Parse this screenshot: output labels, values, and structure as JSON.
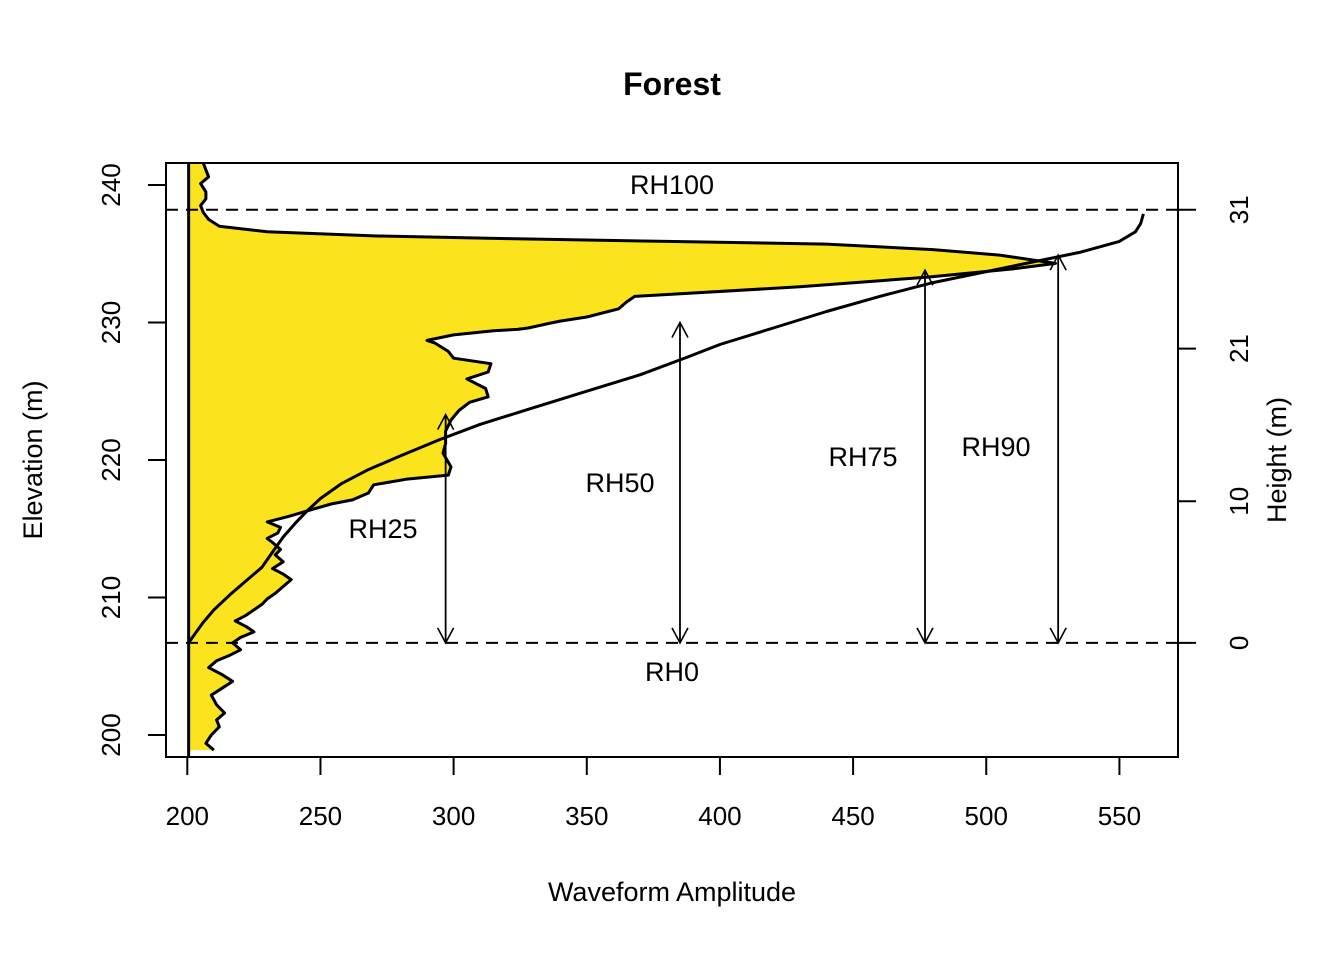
{
  "chart_data": {
    "type": "line",
    "title": "Forest",
    "xlabel": "Waveform Amplitude",
    "ylabel": "Elevation (m)",
    "y2label": "Height (m)",
    "xlim": [
      192,
      572
    ],
    "ylim": [
      198.4,
      241.6
    ],
    "x_ticks": [
      "200",
      "250",
      "300",
      "350",
      "400",
      "450",
      "500",
      "550"
    ],
    "y_ticks": [
      "200",
      "210",
      "220",
      "230",
      "240"
    ],
    "y2_ticks": [
      "0",
      "10",
      "21",
      "31"
    ],
    "y2_tick_elevations": [
      206.7,
      217.0,
      228.1,
      238.2
    ],
    "grid": false,
    "ground_elevation": 206.7,
    "top_elevation": 238.2,
    "baseline_amplitude": 200.5,
    "fill_color": "#FBE31D",
    "line_color": "#000000",
    "series": [
      {
        "kind": "waveform",
        "points": [
          [
            210,
            198.9
          ],
          [
            207,
            199.4
          ],
          [
            209,
            200
          ],
          [
            212,
            200.6
          ],
          [
            211,
            201.1
          ],
          [
            214,
            201.6
          ],
          [
            211,
            202.2
          ],
          [
            209,
            202.9
          ],
          [
            213,
            203.4
          ],
          [
            217,
            203.9
          ],
          [
            213,
            204.4
          ],
          [
            208,
            204.9
          ],
          [
            211,
            205.4
          ],
          [
            216,
            205.8
          ],
          [
            220,
            206.2
          ],
          [
            217,
            206.7
          ],
          [
            220,
            207.1
          ],
          [
            225,
            207.5
          ],
          [
            222,
            207.9
          ],
          [
            218,
            208.3
          ],
          [
            222,
            208.7
          ],
          [
            225,
            209.1
          ],
          [
            228,
            209.5
          ],
          [
            230,
            209.9
          ],
          [
            233,
            210.3
          ],
          [
            236,
            210.8
          ],
          [
            239,
            211.3
          ],
          [
            236,
            211.7
          ],
          [
            232,
            212.1
          ],
          [
            236,
            212.6
          ],
          [
            233,
            213.1
          ],
          [
            235,
            213.5
          ],
          [
            232,
            214.0
          ],
          [
            230,
            214.3
          ],
          [
            234,
            214.7
          ],
          [
            235,
            215.1
          ],
          [
            230,
            215.5
          ],
          [
            238,
            215.9
          ],
          [
            245,
            216.3
          ],
          [
            254,
            216.8
          ],
          [
            262,
            217.1
          ],
          [
            268,
            217.6
          ],
          [
            270,
            218.2
          ],
          [
            282,
            218.6
          ],
          [
            298,
            218.9
          ],
          [
            299,
            219.5
          ],
          [
            296,
            220.5
          ],
          [
            297,
            221.2
          ],
          [
            297,
            222.1
          ],
          [
            299,
            222.9
          ],
          [
            302,
            223.6
          ],
          [
            306,
            224.2
          ],
          [
            313,
            224.6
          ],
          [
            312,
            225.2
          ],
          [
            305,
            225.9
          ],
          [
            313,
            226.4
          ],
          [
            314,
            227.0
          ],
          [
            300,
            227.4
          ],
          [
            298,
            227.9
          ],
          [
            293,
            228.5
          ],
          [
            290,
            228.7
          ],
          [
            300,
            229.1
          ],
          [
            315,
            229.4
          ],
          [
            324,
            229.5
          ],
          [
            328,
            229.6
          ],
          [
            335,
            229.9
          ],
          [
            340,
            230.1
          ],
          [
            350,
            230.4
          ],
          [
            362,
            231.0
          ],
          [
            365,
            231.5
          ],
          [
            368,
            231.9
          ],
          [
            430,
            232.6
          ],
          [
            478,
            233.3
          ],
          [
            510,
            233.9
          ],
          [
            526,
            234.3
          ],
          [
            505,
            234.9
          ],
          [
            480,
            235.3
          ],
          [
            440,
            235.7
          ],
          [
            380,
            235.9
          ],
          [
            320,
            236.1
          ],
          [
            270,
            236.3
          ],
          [
            230,
            236.6
          ],
          [
            212,
            237.0
          ],
          [
            208,
            237.5
          ],
          [
            206,
            238.0
          ],
          [
            205,
            238.5
          ],
          [
            207,
            239.0
          ],
          [
            207,
            239.5
          ],
          [
            205,
            240.1
          ],
          [
            208,
            240.6
          ],
          [
            207,
            241.1
          ],
          [
            206,
            241.6
          ]
        ]
      },
      {
        "kind": "cumulative",
        "points": [
          [
            200.5,
            206.7
          ],
          [
            203,
            207.4
          ],
          [
            206,
            208.2
          ],
          [
            210,
            209.1
          ],
          [
            216,
            210.2
          ],
          [
            222,
            211.2
          ],
          [
            228,
            212.2
          ],
          [
            232,
            213.3
          ],
          [
            236,
            214.4
          ],
          [
            241,
            215.5
          ],
          [
            245,
            216.3
          ],
          [
            250,
            217.2
          ],
          [
            258,
            218.3
          ],
          [
            268,
            219.3
          ],
          [
            280,
            220.3
          ],
          [
            295,
            221.5
          ],
          [
            310,
            222.6
          ],
          [
            330,
            223.8
          ],
          [
            350,
            225.0
          ],
          [
            370,
            226.2
          ],
          [
            388,
            227.5
          ],
          [
            400,
            228.4
          ],
          [
            420,
            229.6
          ],
          [
            440,
            230.8
          ],
          [
            460,
            231.9
          ],
          [
            480,
            232.9
          ],
          [
            500,
            233.7
          ],
          [
            520,
            234.5
          ],
          [
            535,
            235.1
          ],
          [
            550,
            235.9
          ],
          [
            556,
            236.6
          ],
          [
            558,
            237.2
          ],
          [
            559,
            237.9
          ]
        ]
      }
    ],
    "rh_markers": [
      {
        "name": "RH25",
        "amplitude": 297,
        "elevation": 223.3
      },
      {
        "name": "RH50",
        "amplitude": 385,
        "elevation": 230.0
      },
      {
        "name": "RH75",
        "amplitude": 477,
        "elevation": 233.8
      },
      {
        "name": "RH90",
        "amplitude": 527,
        "elevation": 234.9
      }
    ],
    "annotations": {
      "rh100": "RH100",
      "rh0": "RH0",
      "rh25": "RH25",
      "rh50": "RH50",
      "rh75": "RH75",
      "rh90": "RH90"
    }
  }
}
